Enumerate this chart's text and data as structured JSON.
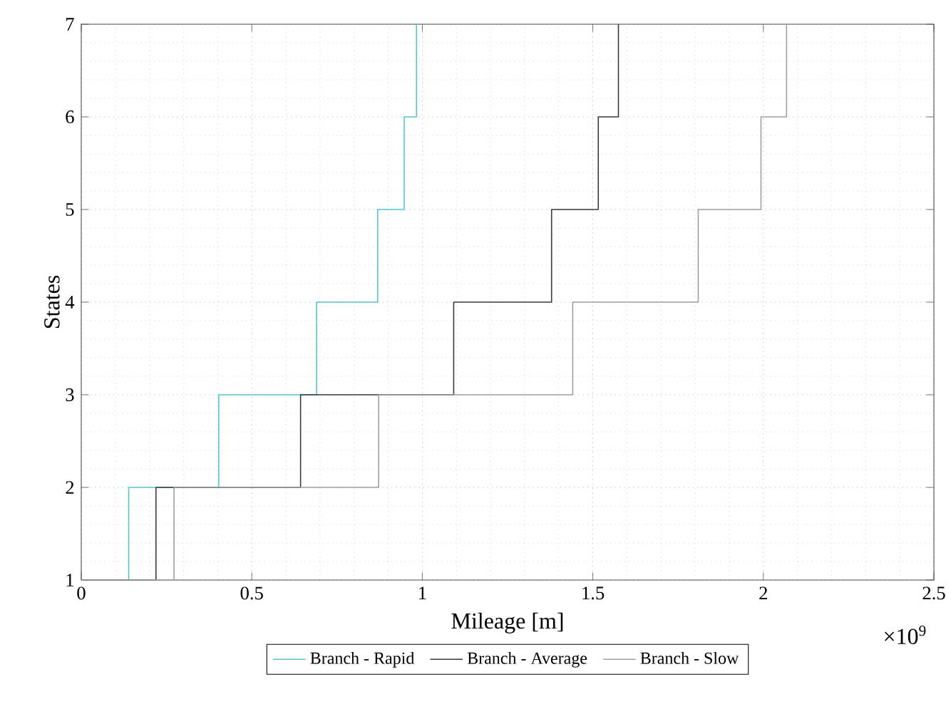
{
  "chart_data": {
    "type": "step",
    "xlabel": "Mileage [m]",
    "ylabel": "States",
    "annotations": [
      "×10$^{9}$"
    ],
    "xlim": [
      0,
      2.5
    ],
    "ylim": [
      1,
      7
    ],
    "xticks": [
      0,
      0.5,
      1,
      1.5,
      2,
      2.5
    ],
    "yticks": [
      1,
      2,
      3,
      4,
      5,
      6,
      7
    ],
    "grid": true,
    "legend": "bottom",
    "marker": "none",
    "line_style": "solid",
    "series": [
      {
        "name": "Branch - Rapid",
        "color": "#4dc9d6",
        "x": [
          0,
          0.139,
          0.403,
          0.69,
          0.869,
          0.947,
          0.983
        ],
        "values": [
          1,
          2,
          3,
          4,
          5,
          6,
          7
        ]
      },
      {
        "name": "Branch - Average",
        "color": "#3a3a3a",
        "x": [
          0,
          0.219,
          0.643,
          1.092,
          1.379,
          1.516,
          1.575
        ],
        "values": [
          1,
          2,
          3,
          4,
          5,
          6,
          7
        ]
      },
      {
        "name": "Branch - Slow",
        "color": "#a0a0a0",
        "x": [
          0,
          0.272,
          0.872,
          1.441,
          1.809,
          1.993,
          2.068
        ],
        "values": [
          1,
          2,
          3,
          4,
          5,
          6,
          7
        ]
      }
    ]
  }
}
